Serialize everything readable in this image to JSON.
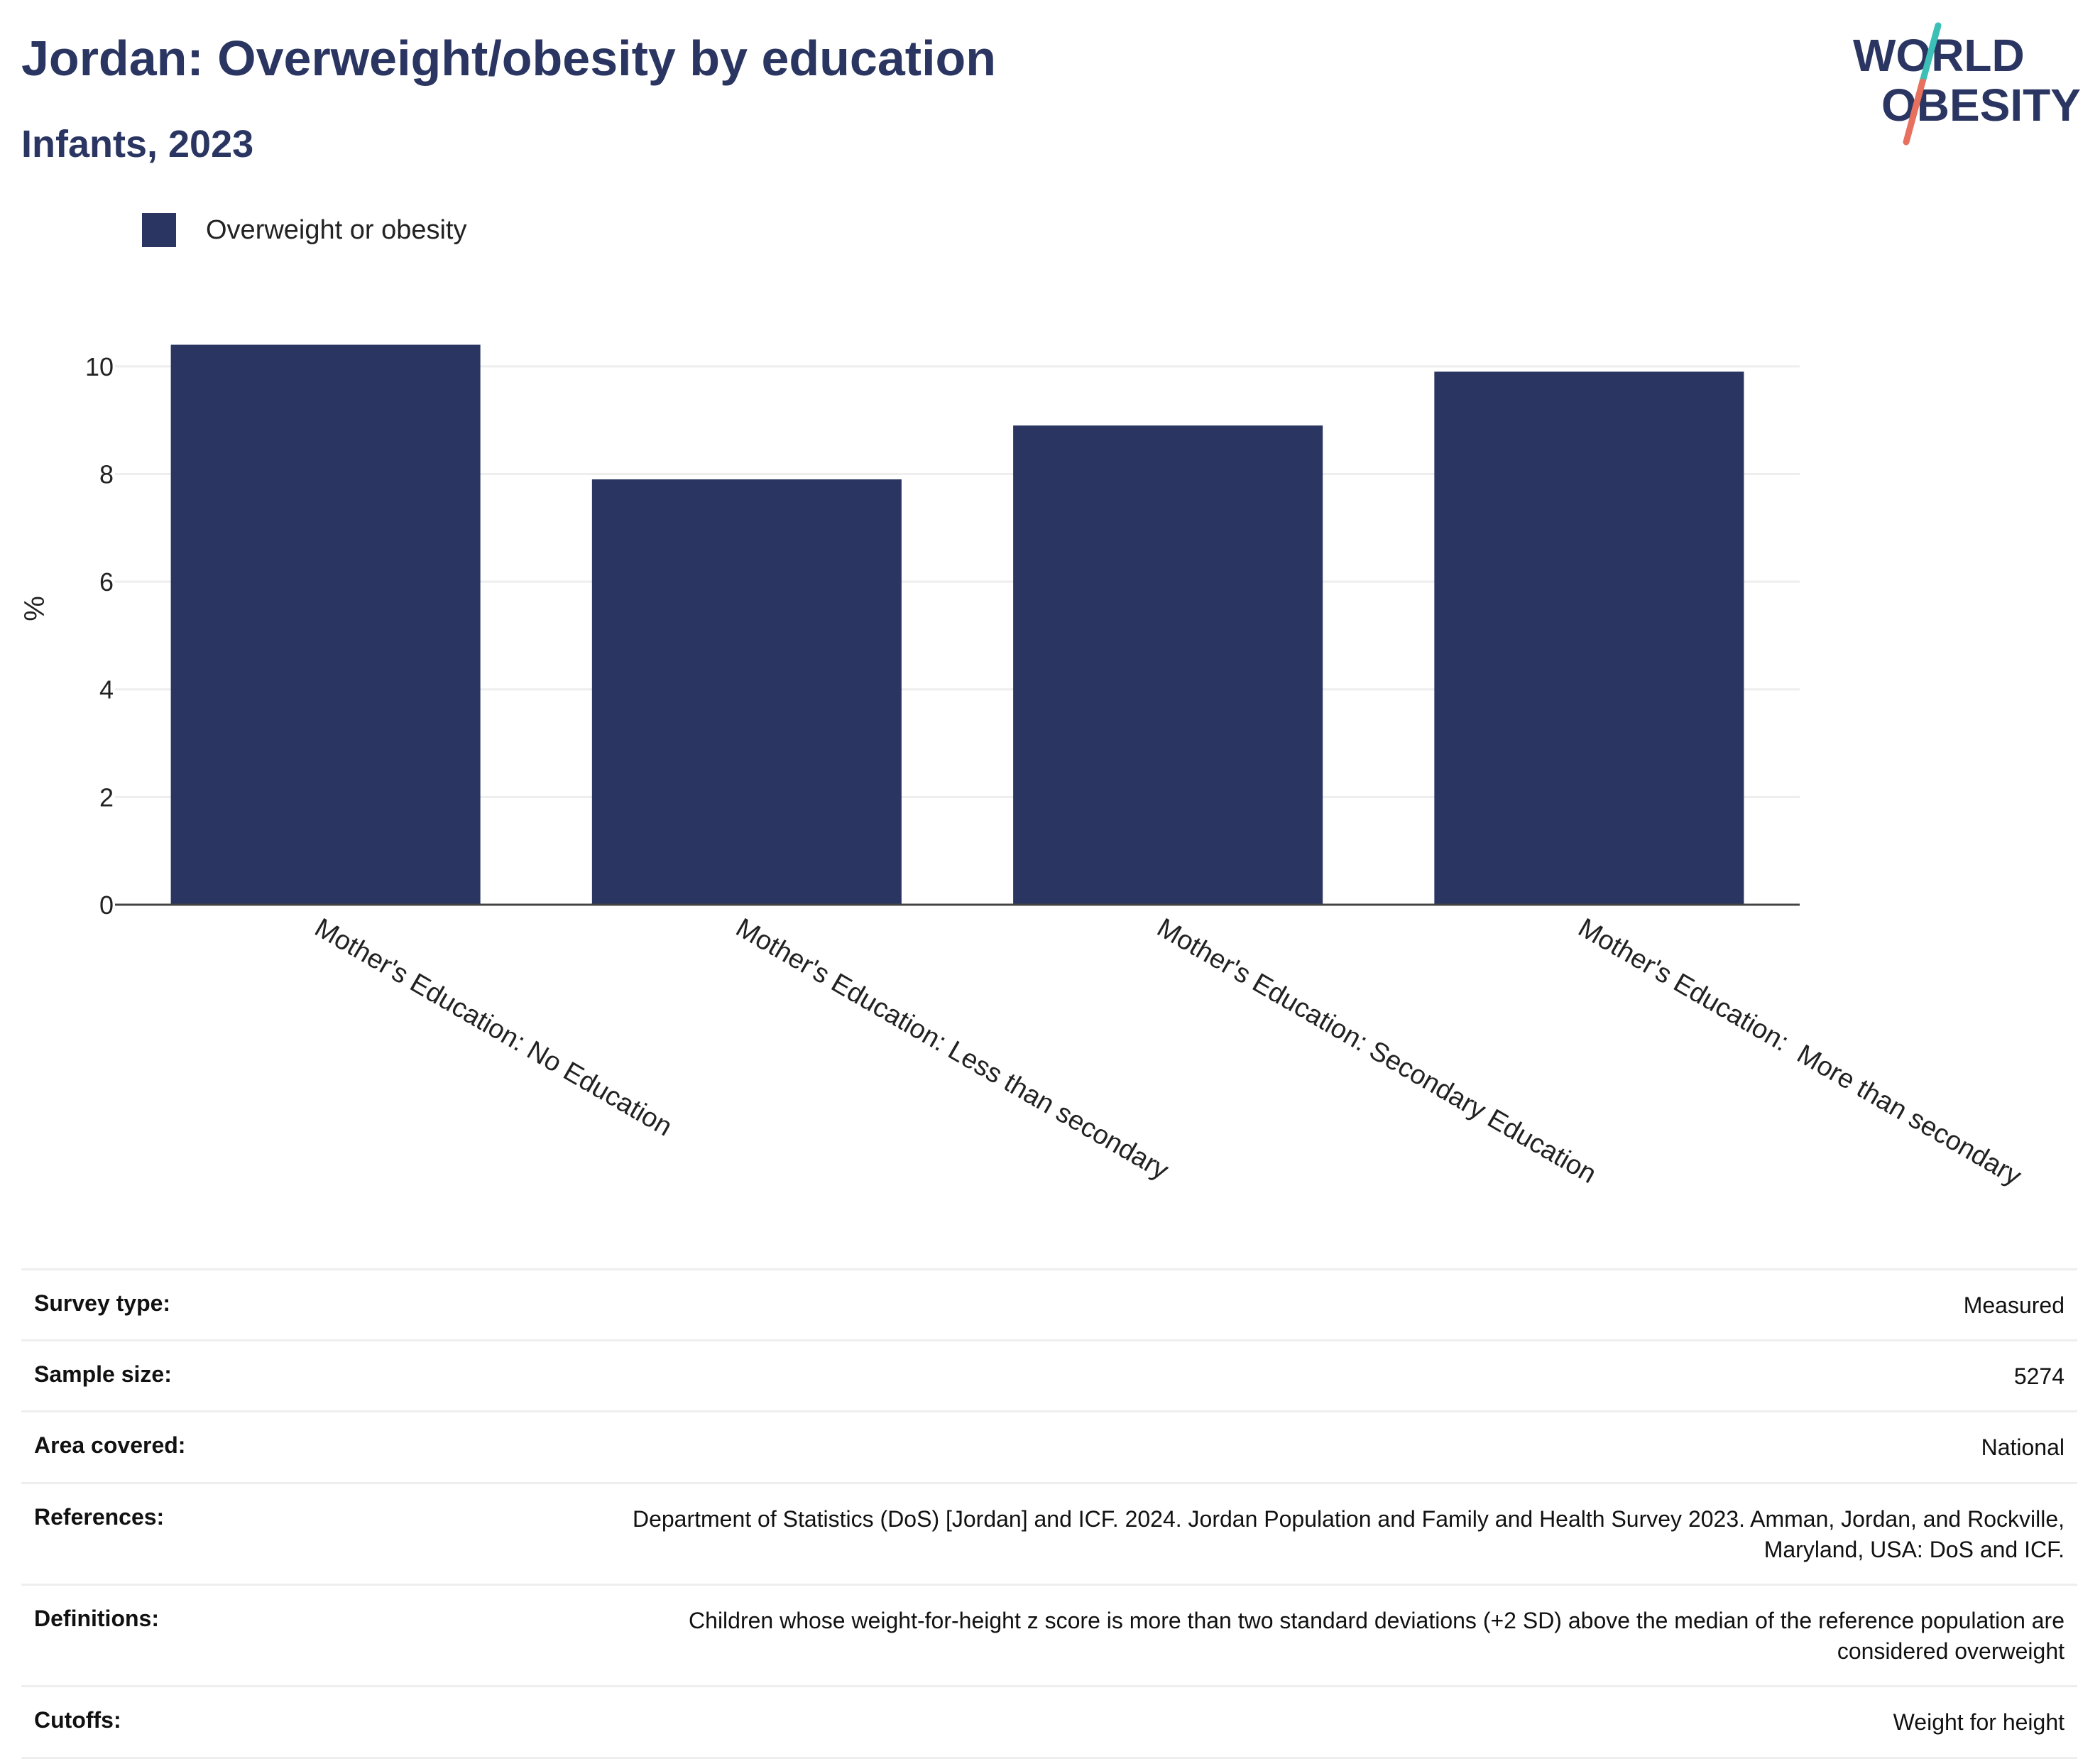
{
  "header": {
    "title": "Jordan: Overweight/obesity by education",
    "subtitle": "Infants, 2023"
  },
  "logo": {
    "line1": "WORLD",
    "line2": "OBESITY",
    "colors": {
      "text": "#2a3561",
      "slash_top": "#3bbfb6",
      "slash_bottom": "#e8705e"
    }
  },
  "colors": {
    "bar": "#2a3561",
    "axis": "#444444",
    "grid": "#eeeeee"
  },
  "chart_data": {
    "type": "bar",
    "categories": [
      "Mother's Education: No Education",
      "Mother's Education: Less than secondary",
      "Mother's Education: Secondary Education",
      "Mother's Education:  More than secondary"
    ],
    "series": [
      {
        "name": "Overweight or obesity",
        "values": [
          10.4,
          7.9,
          8.9,
          9.9
        ]
      }
    ],
    "ylabel": "%",
    "xlabel": "",
    "ylim": [
      0,
      11
    ],
    "yticks": [
      0,
      2,
      4,
      6,
      8,
      10
    ],
    "grid": true,
    "legend": "top-left"
  },
  "meta": [
    {
      "key": "Survey type:",
      "value": "Measured"
    },
    {
      "key": "Sample size:",
      "value": "5274"
    },
    {
      "key": "Area covered:",
      "value": "National"
    },
    {
      "key": "References:",
      "value": "Department of Statistics (DoS) [Jordan] and ICF. 2024. Jordan Population and Family and Health Survey 2023. Amman, Jordan, and Rockville, Maryland, USA: DoS and ICF."
    },
    {
      "key": "Definitions:",
      "value": "Children whose weight-for-height z score is more than two standard deviations (+2 SD) above the median of the reference population are considered overweight"
    },
    {
      "key": "Cutoffs:",
      "value": "Weight for height"
    }
  ]
}
